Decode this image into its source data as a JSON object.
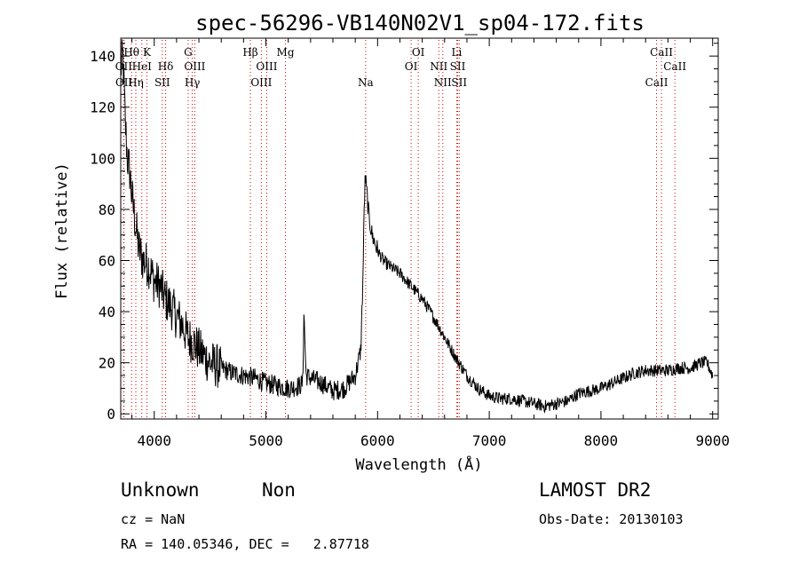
{
  "chart_data": {
    "type": "line",
    "title": "spec-56296-VB140N02V1_sp04-172.fits",
    "xlabel": "Wavelength (Å)",
    "ylabel": "Flux (relative)",
    "xlim": [
      3700,
      9050
    ],
    "ylim": [
      -2,
      147
    ],
    "xticks": [
      4000,
      5000,
      6000,
      7000,
      8000,
      9000
    ],
    "xtick_labels": [
      "4000",
      "5000",
      "6000",
      "7000",
      "8000",
      "9000"
    ],
    "yticks": [
      0,
      20,
      40,
      60,
      80,
      100,
      120,
      140
    ],
    "ytick_labels": [
      "0",
      "20",
      "40",
      "60",
      "80",
      "100",
      "120",
      "140"
    ],
    "grid": false,
    "line_color": "#000000",
    "marker_line_color": "#cc0000",
    "spectrum_anchors": {
      "x": [
        3700,
        3720,
        3740,
        3760,
        3780,
        3800,
        3830,
        3860,
        3900,
        3950,
        4000,
        4050,
        4100,
        4150,
        4200,
        4250,
        4300,
        4350,
        4400,
        4500,
        4600,
        4700,
        4800,
        4900,
        5000,
        5100,
        5200,
        5300,
        5330,
        5340,
        5360,
        5400,
        5500,
        5600,
        5700,
        5800,
        5850,
        5870,
        5880,
        5890,
        5900,
        5920,
        5950,
        6000,
        6050,
        6100,
        6200,
        6300,
        6400,
        6500,
        6600,
        6700,
        6800,
        6900,
        7000,
        7100,
        7200,
        7300,
        7400,
        7500,
        7600,
        7700,
        7800,
        7900,
        8000,
        8100,
        8200,
        8300,
        8400,
        8500,
        8600,
        8700,
        8800,
        8900,
        8950,
        9000
      ],
      "y": [
        135,
        140,
        115,
        100,
        95,
        85,
        75,
        65,
        60,
        58,
        52,
        50,
        45,
        42,
        38,
        35,
        30,
        28,
        25,
        20,
        18,
        16,
        15,
        14,
        12,
        11,
        10,
        11,
        12,
        40,
        15,
        14,
        12,
        9,
        10,
        15,
        25,
        55,
        80,
        93,
        88,
        78,
        70,
        64,
        60,
        58,
        55,
        50,
        45,
        38,
        30,
        22,
        15,
        10,
        7,
        6,
        6,
        5,
        4,
        3,
        4,
        5,
        8,
        9,
        10,
        12,
        14,
        16,
        17,
        17,
        17,
        18,
        18,
        20,
        20,
        15
      ],
      "noise_amplitude": 5,
      "noise_note": "spectrum rendered as dense noisy trace interpolated between anchors"
    },
    "line_markers": [
      {
        "label": "Hθ",
        "wavelength": 3797,
        "row": 1
      },
      {
        "label": "K",
        "wavelength": 3934,
        "row": 1
      },
      {
        "label": "OII",
        "wavelength": 3727,
        "row": 2
      },
      {
        "label": "HeI",
        "wavelength": 3889,
        "row": 2
      },
      {
        "label": "Hδ",
        "wavelength": 4102,
        "row": 2
      },
      {
        "label": "OII",
        "wavelength": 3729,
        "row": 3
      },
      {
        "label": "Hη",
        "wavelength": 3835,
        "row": 3
      },
      {
        "label": "SII",
        "wavelength": 4072,
        "row": 3
      },
      {
        "label": "G",
        "wavelength": 4304,
        "row": 1
      },
      {
        "label": "OIII",
        "wavelength": 4363,
        "row": 2
      },
      {
        "label": "Hγ",
        "wavelength": 4341,
        "row": 3
      },
      {
        "label": "Hβ",
        "wavelength": 4861,
        "row": 1
      },
      {
        "label": "Mg",
        "wavelength": 5175,
        "row": 1
      },
      {
        "label": "OIII",
        "wavelength": 5007,
        "row": 2
      },
      {
        "label": "OIII",
        "wavelength": 4959,
        "row": 3
      },
      {
        "label": "Na",
        "wavelength": 5893,
        "row": 3
      },
      {
        "label": "OI",
        "wavelength": 6364,
        "row": 1
      },
      {
        "label": "OI",
        "wavelength": 6300,
        "row": 2
      },
      {
        "label": "Li",
        "wavelength": 6708,
        "row": 1
      },
      {
        "label": "NII",
        "wavelength": 6548,
        "row": 2
      },
      {
        "label": "SII",
        "wavelength": 6717,
        "row": 2
      },
      {
        "label": "NII",
        "wavelength": 6584,
        "row": 3
      },
      {
        "label": "SII",
        "wavelength": 6731,
        "row": 3
      },
      {
        "label": "CaII",
        "wavelength": 8542,
        "row": 1
      },
      {
        "label": "CaII",
        "wavelength": 8662,
        "row": 2
      },
      {
        "label": "CaII",
        "wavelength": 8498,
        "row": 3
      }
    ]
  },
  "footer": {
    "class_text": "Unknown",
    "subclass_text": "Non",
    "survey_text": "LAMOST DR2",
    "cz_text": "cz = NaN",
    "obs_date_text": "Obs-Date: 20130103",
    "coords_text": "RA = 140.05346, DEC =   2.87718"
  }
}
